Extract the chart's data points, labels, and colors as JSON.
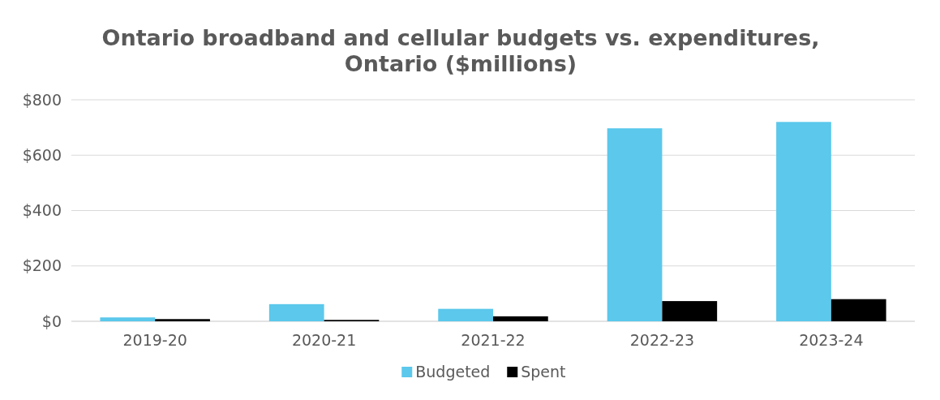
{
  "chart_data": {
    "type": "bar",
    "title": "Ontario broadband and cellular budgets vs. expenditures, Ontario ($millions)",
    "categories": [
      "2019-20",
      "2020-21",
      "2021-22",
      "2022-23",
      "2023-24"
    ],
    "series": [
      {
        "name": "Budgeted",
        "color": "#5bc8ec",
        "values": [
          14,
          62,
          45,
          697,
          720
        ]
      },
      {
        "name": "Spent",
        "color": "#000000",
        "values": [
          8,
          5,
          18,
          73,
          80
        ]
      }
    ],
    "ylim": [
      0,
      800
    ],
    "yticks": [
      {
        "value": 0,
        "label": "$0"
      },
      {
        "value": 200,
        "label": "$200"
      },
      {
        "value": 400,
        "label": "$400"
      },
      {
        "value": 600,
        "label": "$600"
      },
      {
        "value": 800,
        "label": "$800"
      }
    ],
    "grid": "y",
    "legend": "bottom"
  }
}
